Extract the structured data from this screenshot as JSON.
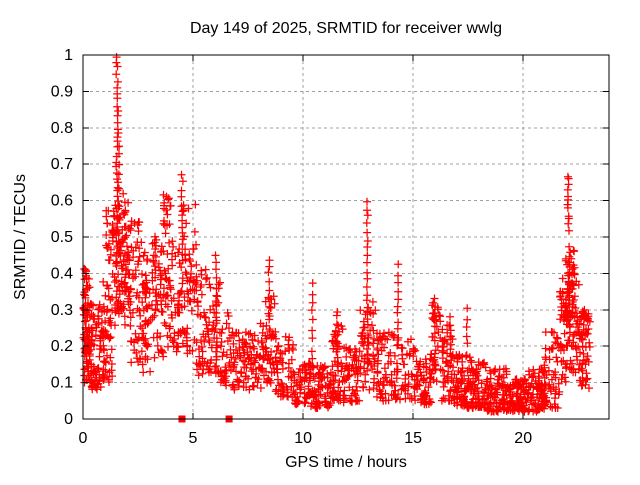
{
  "chart_data": {
    "type": "scatter",
    "title": "Day 149 of 2025, SRMTID for receiver wwlg",
    "xlabel": "GPS time / hours",
    "ylabel": "SRMTID / TECUs",
    "xlim": [
      0,
      23.9
    ],
    "ylim": [
      0,
      1
    ],
    "xticks": {
      "values": [
        0,
        5,
        10,
        15,
        20
      ],
      "labels": [
        "0",
        "5",
        "10",
        "15",
        "20"
      ]
    },
    "yticks": {
      "values": [
        0,
        0.1,
        0.2,
        0.3,
        0.4,
        0.5,
        0.6,
        0.7,
        0.8,
        0.9,
        1
      ],
      "labels": [
        "0",
        "0.1",
        "0.2",
        "0.3",
        "0.4",
        "0.5",
        "0.6",
        "0.7",
        "0.8",
        "0.9",
        "1"
      ]
    },
    "grid": true,
    "legend": null,
    "background_color": "#ffffff",
    "text_color": "#000000",
    "frame_color": "#000000",
    "grid_color": "#a0a0a0",
    "marker": {
      "shape": "plus",
      "color": "#ff0000"
    },
    "axis_squares": {
      "color": "#ff0000",
      "y": 0,
      "x_values": [
        4.5,
        6.64
      ]
    },
    "point_cloud": {
      "seed": 1490725,
      "bands_format": [
        "x_start_hour",
        "x_end_hour",
        "y_min_tecu",
        "y_max_tecu",
        "point_count",
        "skew_toward_min"
      ],
      "bands": [
        [
          0.0,
          0.35,
          0.17,
          0.42,
          55,
          1.0
        ],
        [
          0.05,
          0.45,
          0.1,
          0.25,
          35,
          1.0
        ],
        [
          0.35,
          0.95,
          0.08,
          0.32,
          70,
          1.2
        ],
        [
          0.9,
          1.35,
          0.1,
          0.4,
          45,
          1.1
        ],
        [
          1.05,
          1.35,
          0.42,
          0.62,
          18,
          1.0
        ],
        [
          1.35,
          1.75,
          0.25,
          0.6,
          45,
          0.9
        ],
        [
          1.75,
          2.15,
          0.25,
          0.62,
          55,
          0.8
        ],
        [
          2.15,
          2.65,
          0.15,
          0.55,
          50,
          1.1
        ],
        [
          2.65,
          3.15,
          0.12,
          0.46,
          50,
          1.2
        ],
        [
          3.15,
          3.65,
          0.14,
          0.5,
          45,
          1.1
        ],
        [
          3.65,
          4.05,
          0.18,
          0.62,
          50,
          0.85
        ],
        [
          4.05,
          4.45,
          0.18,
          0.5,
          35,
          1.1
        ],
        [
          4.45,
          5.15,
          0.18,
          0.6,
          60,
          1.15
        ],
        [
          5.15,
          5.65,
          0.12,
          0.42,
          40,
          1.2
        ],
        [
          5.65,
          6.25,
          0.12,
          0.38,
          45,
          1.2
        ],
        [
          6.25,
          6.85,
          0.09,
          0.3,
          42,
          1.25
        ],
        [
          6.85,
          7.65,
          0.08,
          0.24,
          55,
          1.2
        ],
        [
          7.65,
          8.25,
          0.08,
          0.27,
          45,
          1.2
        ],
        [
          8.25,
          8.75,
          0.09,
          0.34,
          40,
          1.2
        ],
        [
          8.75,
          9.55,
          0.06,
          0.24,
          55,
          1.3
        ],
        [
          9.55,
          10.35,
          0.04,
          0.16,
          60,
          1.2
        ],
        [
          10.35,
          11.35,
          0.03,
          0.15,
          75,
          1.2
        ],
        [
          11.3,
          11.8,
          0.05,
          0.26,
          45,
          1.3
        ],
        [
          11.8,
          12.55,
          0.04,
          0.2,
          60,
          1.2
        ],
        [
          12.55,
          12.85,
          0.08,
          0.3,
          25,
          1.1
        ],
        [
          12.9,
          13.35,
          0.08,
          0.33,
          32,
          1.2
        ],
        [
          13.35,
          14.15,
          0.05,
          0.24,
          60,
          1.3
        ],
        [
          14.15,
          15.35,
          0.05,
          0.22,
          70,
          1.3
        ],
        [
          15.35,
          15.85,
          0.04,
          0.18,
          45,
          1.2
        ],
        [
          15.85,
          16.25,
          0.1,
          0.32,
          30,
          1.1
        ],
        [
          16.25,
          16.85,
          0.05,
          0.27,
          48,
          1.4
        ],
        [
          16.85,
          17.65,
          0.03,
          0.18,
          80,
          1.4
        ],
        [
          17.65,
          18.35,
          0.03,
          0.16,
          70,
          1.4
        ],
        [
          18.35,
          19.25,
          0.02,
          0.14,
          85,
          1.4
        ],
        [
          19.25,
          20.25,
          0.02,
          0.11,
          95,
          1.3
        ],
        [
          20.25,
          20.95,
          0.02,
          0.14,
          70,
          1.3
        ],
        [
          20.95,
          21.65,
          0.03,
          0.24,
          60,
          1.4
        ],
        [
          21.65,
          22.05,
          0.1,
          0.4,
          45,
          1.1
        ],
        [
          21.9,
          22.35,
          0.25,
          0.47,
          40,
          1.0
        ],
        [
          22.05,
          22.55,
          0.12,
          0.4,
          45,
          1.2
        ],
        [
          22.55,
          23.05,
          0.08,
          0.3,
          55,
          1.2
        ]
      ],
      "spikes_format": [
        "x_hour",
        "y_min_tecu",
        "y_max_tecu",
        "point_count",
        "x_jitter_hours"
      ],
      "spikes": [
        [
          1.55,
          0.3,
          1.0,
          42,
          0.1
        ],
        [
          1.62,
          0.55,
          0.78,
          10,
          0.05
        ],
        [
          3.3,
          0.3,
          0.5,
          8,
          0.06
        ],
        [
          4.5,
          0.35,
          0.67,
          16,
          0.08
        ],
        [
          6.05,
          0.25,
          0.45,
          10,
          0.06
        ],
        [
          8.45,
          0.25,
          0.44,
          10,
          0.06
        ],
        [
          10.42,
          0.14,
          0.37,
          10,
          0.05
        ],
        [
          11.55,
          0.15,
          0.3,
          8,
          0.06
        ],
        [
          12.92,
          0.15,
          0.6,
          22,
          0.06
        ],
        [
          14.3,
          0.2,
          0.42,
          11,
          0.06
        ],
        [
          16.0,
          0.15,
          0.33,
          10,
          0.06
        ],
        [
          16.7,
          0.15,
          0.28,
          8,
          0.05
        ],
        [
          17.45,
          0.18,
          0.3,
          6,
          0.05
        ],
        [
          22.05,
          0.52,
          0.67,
          12,
          0.07
        ],
        [
          22.1,
          0.3,
          0.47,
          14,
          0.08
        ]
      ]
    }
  }
}
